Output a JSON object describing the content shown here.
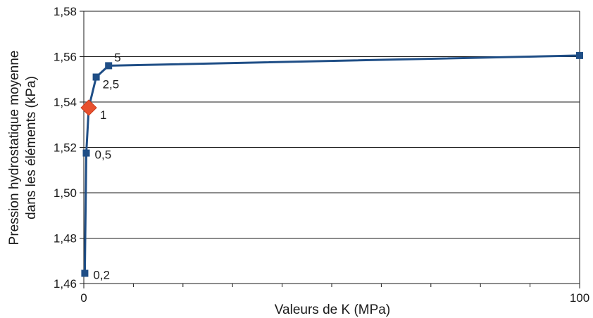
{
  "chart_data": {
    "type": "line",
    "title": "",
    "xlabel": "Valeurs de K (MPa)",
    "ylabel_line1": "Pression hydrostatique moyenne",
    "ylabel_line2": "dans les éléments (kPa)",
    "xlim": [
      0,
      100
    ],
    "ylim": [
      1.46,
      1.58
    ],
    "x_tick_labels": [
      {
        "value": 0,
        "label": "0"
      },
      {
        "value": 100,
        "label": "100"
      }
    ],
    "x_minor_ticks": [
      10,
      20,
      30,
      40,
      50,
      60,
      70,
      80,
      90
    ],
    "y_ticks": [
      {
        "value": 1.46,
        "label": "1,46"
      },
      {
        "value": 1.48,
        "label": "1,48"
      },
      {
        "value": 1.5,
        "label": "1,50"
      },
      {
        "value": 1.52,
        "label": "1,52"
      },
      {
        "value": 1.54,
        "label": "1,54"
      },
      {
        "value": 1.56,
        "label": "1,56"
      },
      {
        "value": 1.58,
        "label": "1,58"
      }
    ],
    "grid": true,
    "legend": "none",
    "series": [
      {
        "points": [
          {
            "x": 0.2,
            "y": 1.4645,
            "label": "0,2"
          },
          {
            "x": 0.5,
            "y": 1.5175,
            "label": "0,5"
          },
          {
            "x": 1,
            "y": 1.5375,
            "label": "1",
            "highlight": true
          },
          {
            "x": 2.5,
            "y": 1.551,
            "label": "2,5"
          },
          {
            "x": 5,
            "y": 1.556,
            "label": "5"
          },
          {
            "x": 100,
            "y": 1.5605,
            "label": ""
          }
        ],
        "color": "#1f4e86"
      }
    ],
    "highlight_color": "#e8502e",
    "marker_color": "#1f4e86",
    "grid_color": "#1a1a1a"
  }
}
